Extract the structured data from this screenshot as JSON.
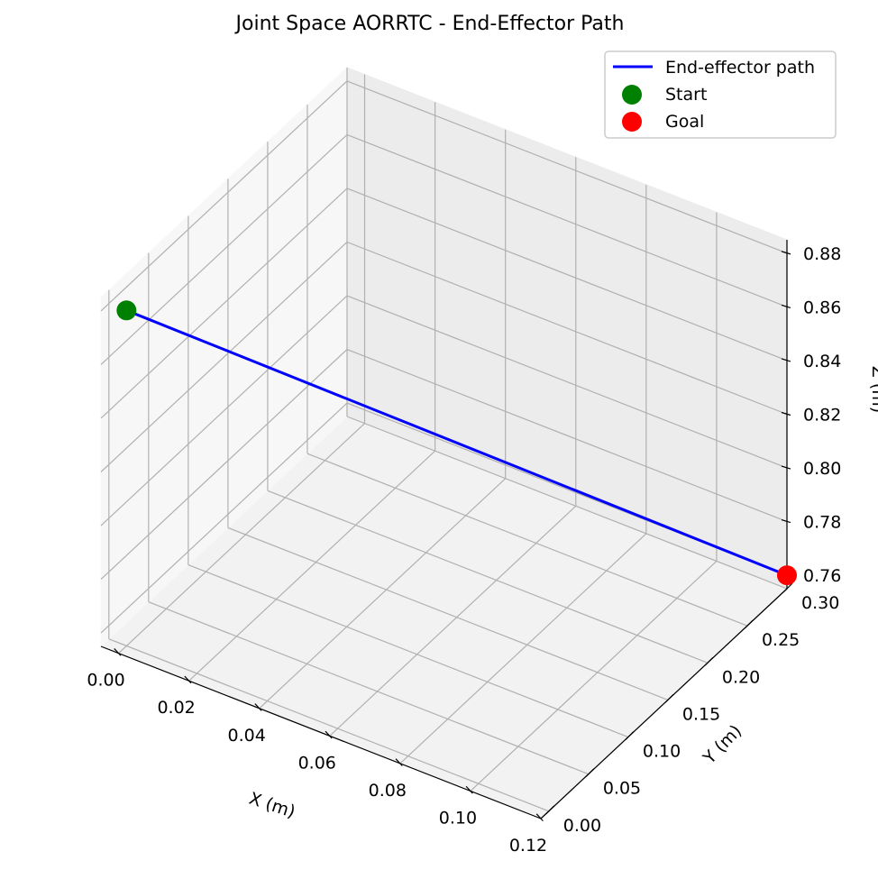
{
  "chart_data": {
    "type": "line3d",
    "title": "Joint Space AORRTC - End-Effector Path",
    "xlabel": "X (m)",
    "ylabel": "Y (m)",
    "zlabel": "Z (m)",
    "xlim": [
      -0.005,
      0.12
    ],
    "ylim": [
      -0.01,
      0.3
    ],
    "zlim": [
      0.755,
      0.885
    ],
    "xticks": [
      "0.00",
      "0.02",
      "0.04",
      "0.06",
      "0.08",
      "0.10",
      "0.12"
    ],
    "yticks": [
      "0.00",
      "0.05",
      "0.10",
      "0.15",
      "0.20",
      "0.25",
      "0.30"
    ],
    "zticks": [
      "0.76",
      "0.78",
      "0.80",
      "0.82",
      "0.84",
      "0.86",
      "0.88"
    ],
    "grid": true,
    "legend_position": "top-right",
    "series": [
      {
        "name": "End-effector path",
        "kind": "line",
        "color": "#0000ff",
        "points": [
          [
            0.0,
            0.0,
            0.88
          ],
          [
            0.12,
            0.3,
            0.76
          ]
        ]
      },
      {
        "name": "Start",
        "kind": "scatter",
        "color": "#008000",
        "points": [
          [
            0.0,
            0.0,
            0.88
          ]
        ]
      },
      {
        "name": "Goal",
        "kind": "scatter",
        "color": "#ff0000",
        "points": [
          [
            0.12,
            0.3,
            0.76
          ]
        ]
      }
    ]
  }
}
